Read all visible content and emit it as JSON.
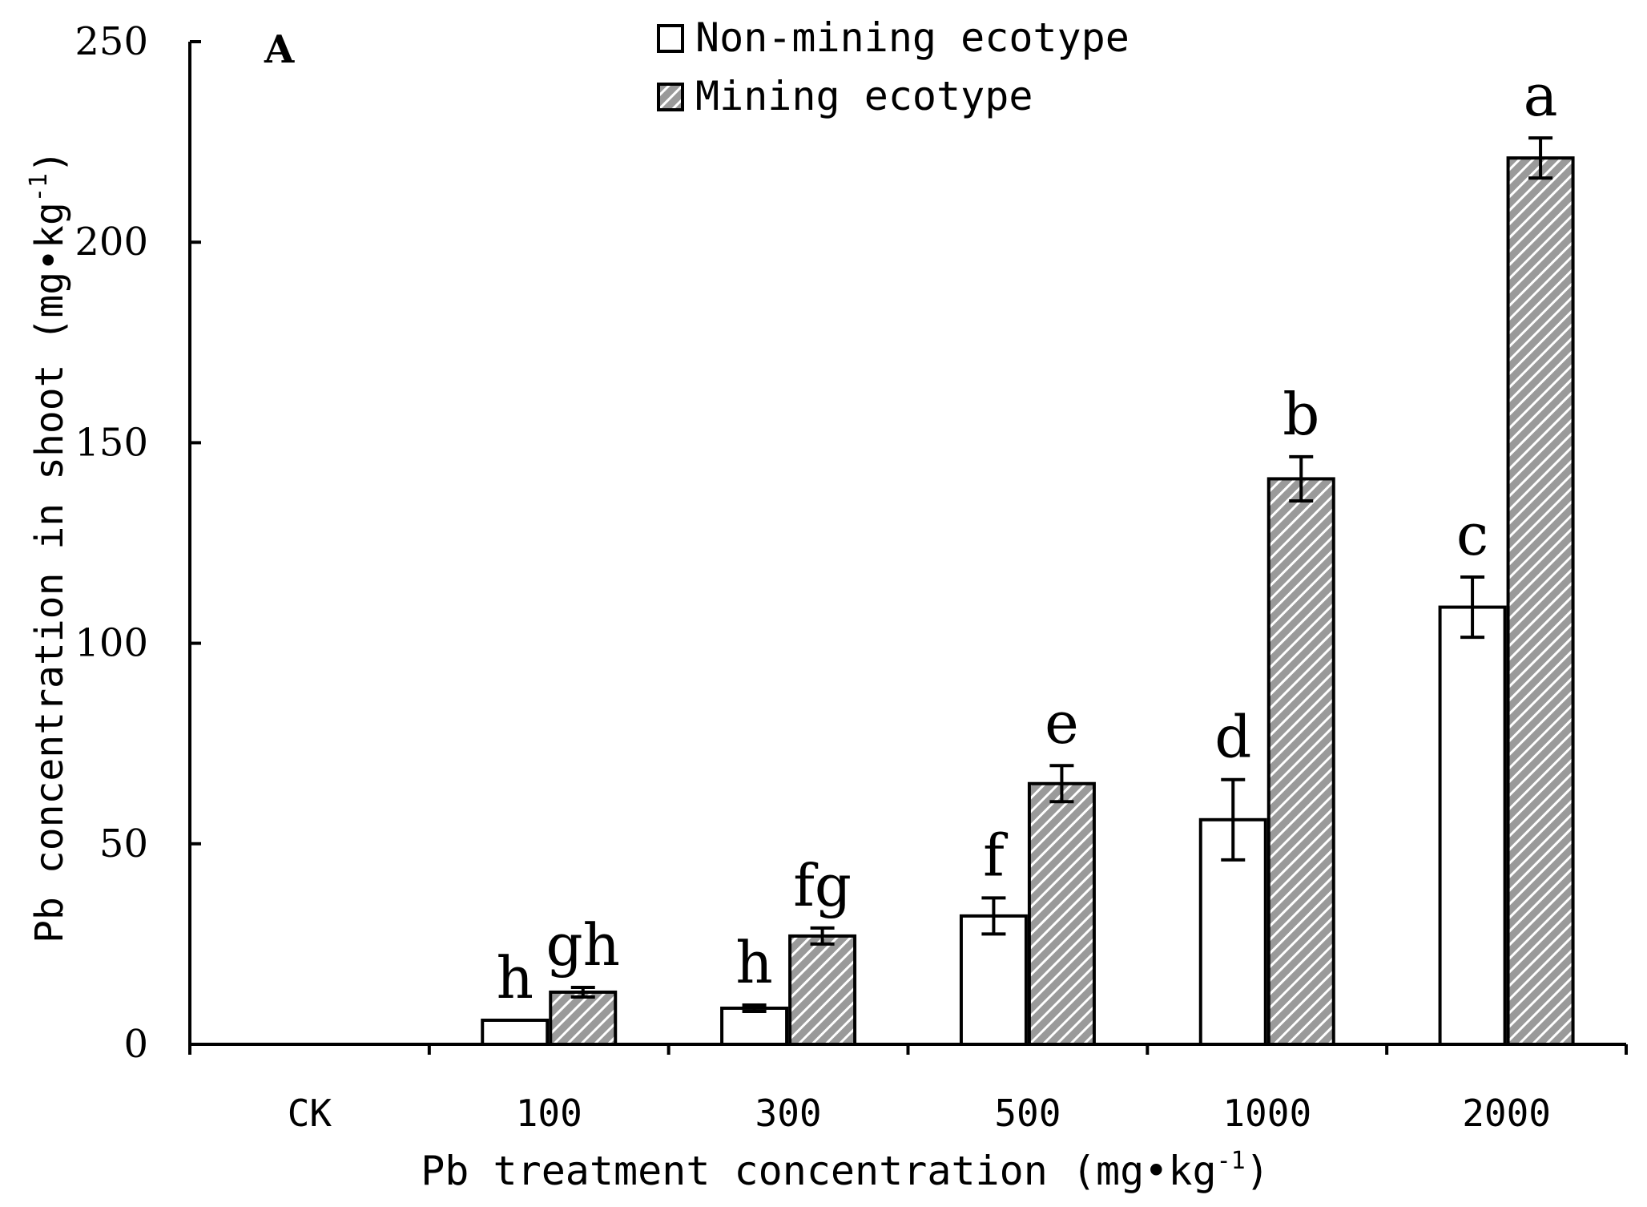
{
  "chart_data": {
    "type": "bar",
    "panel_label": "A",
    "categories": [
      "CK",
      "100",
      "300",
      "500",
      "1000",
      "2000"
    ],
    "series": [
      {
        "name": "Non-mining ecotype",
        "fill": "#ffffff",
        "values": [
          0,
          6,
          9,
          32,
          56,
          109
        ],
        "errors": [
          0,
          0,
          0.8,
          4.5,
          10,
          7.5
        ],
        "letters": [
          "",
          "h",
          "h",
          "f",
          "d",
          "c"
        ]
      },
      {
        "name": "Mining ecotype",
        "fill": "#a0a0a0",
        "hatched": true,
        "values": [
          0,
          13,
          27,
          65,
          141,
          221
        ],
        "errors": [
          0,
          1.2,
          2,
          4.5,
          5.5,
          5
        ],
        "letters": [
          "",
          "gh",
          "fg",
          "e",
          "b",
          "a"
        ]
      }
    ],
    "ylim": [
      0,
      250
    ],
    "yticks": [
      0,
      50,
      100,
      150,
      200,
      250
    ],
    "ylabel": "Pb concentration in shoot (mg•kg",
    "ylabel_sup": "-1",
    "ylabel_close": ")",
    "xlabel": "Pb treatment concentration (mg•kg",
    "xlabel_sup": "-1",
    "xlabel_close": ")",
    "legend_position": "top-center",
    "grid": false
  }
}
